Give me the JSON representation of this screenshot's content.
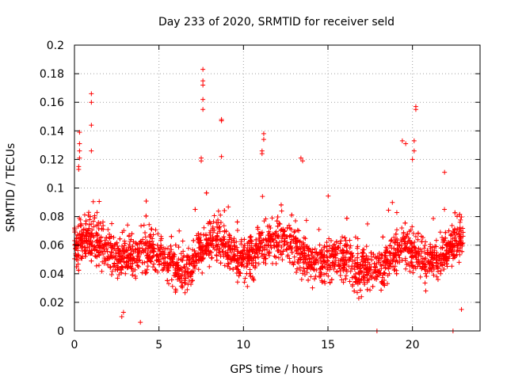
{
  "chart_data": {
    "type": "scatter",
    "title": "Day 233 of 2020, SRMTID for receiver seld",
    "xlabel": "GPS time / hours",
    "ylabel": "SRMTID / TECUs",
    "xlim": [
      0,
      24
    ],
    "ylim": [
      0,
      0.2
    ],
    "xticks": [
      0,
      5,
      10,
      15,
      20
    ],
    "xtick_labels": [
      "0",
      "5",
      "10",
      "15",
      "20"
    ],
    "yticks": [
      0,
      0.02,
      0.04,
      0.06,
      0.08,
      0.1,
      0.12,
      0.14,
      0.16,
      0.18,
      0.2
    ],
    "ytick_labels": [
      "0",
      "0.02",
      "0.04",
      "0.06",
      "0.08",
      "0.1",
      "0.12",
      "0.14",
      "0.16",
      "0.18",
      "0.2"
    ],
    "grid": true,
    "marker": "+",
    "color": "#ff0000",
    "data_range_hours": [
      0,
      23
    ],
    "series": [
      {
        "name": "SRMTID",
        "description": "dense scatter, roughly 3000 points between 0 and 23 h, mostly 0.02-0.09 TECU",
        "notable_points": [
          {
            "x": 0.3,
            "y": 0.139
          },
          {
            "x": 0.3,
            "y": 0.131
          },
          {
            "x": 0.3,
            "y": 0.126
          },
          {
            "x": 0.3,
            "y": 0.121
          },
          {
            "x": 0.25,
            "y": 0.115
          },
          {
            "x": 0.25,
            "y": 0.113
          },
          {
            "x": 1.0,
            "y": 0.166
          },
          {
            "x": 1.0,
            "y": 0.16
          },
          {
            "x": 1.0,
            "y": 0.144
          },
          {
            "x": 1.0,
            "y": 0.126
          },
          {
            "x": 3.9,
            "y": 0.006
          },
          {
            "x": 2.8,
            "y": 0.01
          },
          {
            "x": 2.9,
            "y": 0.013
          },
          {
            "x": 7.6,
            "y": 0.183
          },
          {
            "x": 7.6,
            "y": 0.175
          },
          {
            "x": 7.6,
            "y": 0.172
          },
          {
            "x": 7.6,
            "y": 0.162
          },
          {
            "x": 7.6,
            "y": 0.155
          },
          {
            "x": 7.5,
            "y": 0.121
          },
          {
            "x": 7.5,
            "y": 0.119
          },
          {
            "x": 8.7,
            "y": 0.148
          },
          {
            "x": 8.7,
            "y": 0.147
          },
          {
            "x": 8.7,
            "y": 0.122
          },
          {
            "x": 11.2,
            "y": 0.138
          },
          {
            "x": 11.2,
            "y": 0.134
          },
          {
            "x": 11.1,
            "y": 0.126
          },
          {
            "x": 11.1,
            "y": 0.124
          },
          {
            "x": 13.4,
            "y": 0.121
          },
          {
            "x": 13.5,
            "y": 0.119
          },
          {
            "x": 17.9,
            "y": 0.0
          },
          {
            "x": 22.4,
            "y": 0.0
          },
          {
            "x": 22.9,
            "y": 0.015
          },
          {
            "x": 19.4,
            "y": 0.133
          },
          {
            "x": 19.6,
            "y": 0.131
          },
          {
            "x": 20.2,
            "y": 0.157
          },
          {
            "x": 20.2,
            "y": 0.155
          },
          {
            "x": 20.1,
            "y": 0.133
          },
          {
            "x": 20.1,
            "y": 0.126
          },
          {
            "x": 20.0,
            "y": 0.12
          },
          {
            "x": 21.9,
            "y": 0.111
          }
        ]
      }
    ]
  }
}
